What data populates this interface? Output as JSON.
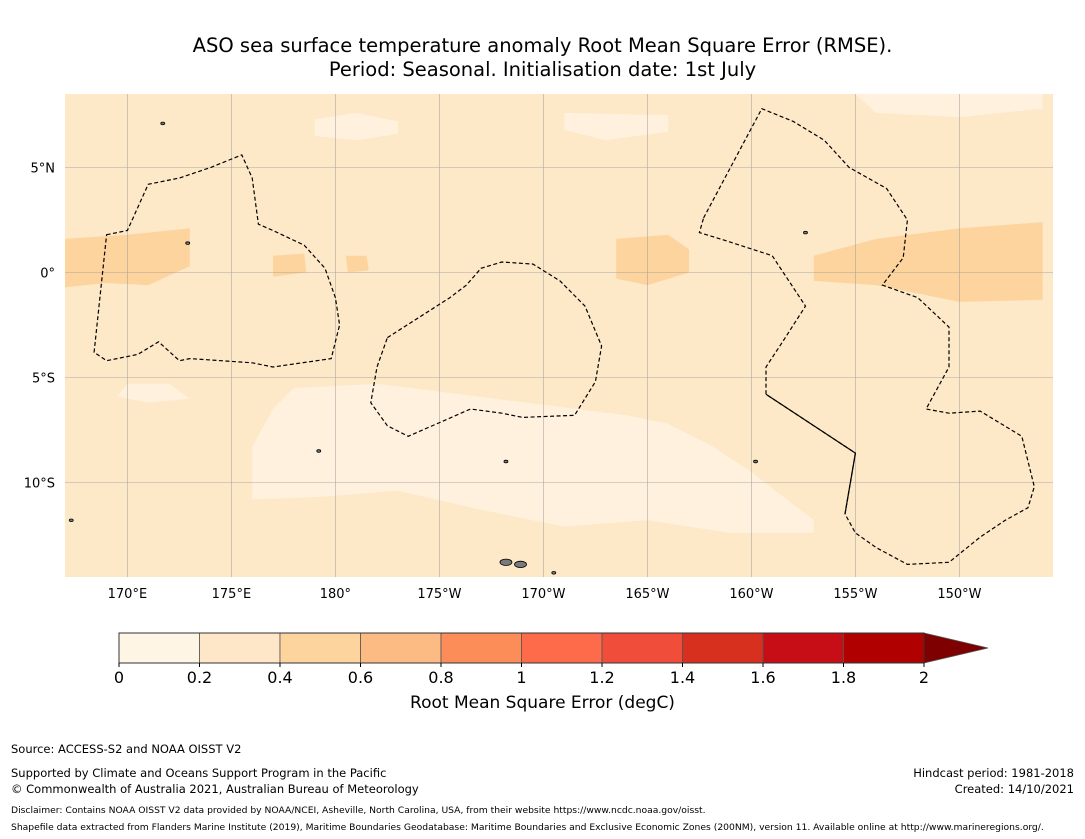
{
  "title": {
    "line1": "ASO sea surface temperature anomaly Root Mean Square Error (RMSE).",
    "line2": "Period: Seasonal. Initialisation date: 1st July"
  },
  "map": {
    "lat_range": [
      -14.5,
      8.5
    ],
    "lon_range": [
      167,
      214.5
    ],
    "lat_ticks": [
      {
        "value": 5,
        "label": "5°N"
      },
      {
        "value": 0,
        "label": "0°"
      },
      {
        "value": -5,
        "label": "5°S"
      },
      {
        "value": -10,
        "label": "10°S"
      }
    ],
    "lon_ticks": [
      {
        "value": 170,
        "label": "170°E"
      },
      {
        "value": 175,
        "label": "175°E"
      },
      {
        "value": 180,
        "label": "180°"
      },
      {
        "value": 185,
        "label": "175°W"
      },
      {
        "value": 190,
        "label": "170°W"
      },
      {
        "value": 195,
        "label": "165°W"
      },
      {
        "value": 200,
        "label": "160°W"
      },
      {
        "value": 205,
        "label": "155°W"
      },
      {
        "value": 210,
        "label": "150°W"
      }
    ],
    "background_color": "#fde8c8",
    "regions": [
      {
        "level": "0-0.2",
        "color": "#fff1de",
        "polygon": [
          [
            178,
            -5.5
          ],
          [
            182,
            -5.3
          ],
          [
            186,
            -5.8
          ],
          [
            190,
            -6.3
          ],
          [
            194,
            -6.8
          ],
          [
            196,
            -7.2
          ],
          [
            198,
            -8.2
          ],
          [
            200,
            -9.5
          ],
          [
            203,
            -11.8
          ],
          [
            203,
            -12.4
          ],
          [
            199,
            -12.4
          ],
          [
            195,
            -11.8
          ],
          [
            191,
            -12.1
          ],
          [
            187,
            -11.3
          ],
          [
            183,
            -10.4
          ],
          [
            179,
            -10.7
          ],
          [
            176,
            -10.8
          ],
          [
            176,
            -8.3
          ],
          [
            177,
            -6.5
          ]
        ]
      },
      {
        "level": "0-0.2",
        "color": "#fff1de",
        "polygon": [
          [
            170,
            -5.3
          ],
          [
            172,
            -5.3
          ],
          [
            173,
            -6.0
          ],
          [
            171,
            -6.2
          ],
          [
            169.5,
            -5.9
          ]
        ]
      },
      {
        "level": "0-0.2",
        "color": "#fff1de",
        "polygon": [
          [
            179,
            7.3
          ],
          [
            181,
            7.6
          ],
          [
            183,
            7.2
          ],
          [
            183,
            6.6
          ],
          [
            181,
            6.3
          ],
          [
            179,
            6.5
          ]
        ]
      },
      {
        "level": "0-0.2",
        "color": "#fff1de",
        "polygon": [
          [
            191,
            7.6
          ],
          [
            196,
            7.5
          ],
          [
            196,
            6.7
          ],
          [
            193,
            6.3
          ],
          [
            191,
            6.8
          ]
        ]
      },
      {
        "level": "0-0.2",
        "color": "#fff1de",
        "polygon": [
          [
            205,
            8.5
          ],
          [
            214,
            8.5
          ],
          [
            214,
            7.8
          ],
          [
            210,
            7.4
          ],
          [
            206,
            7.6
          ]
        ]
      },
      {
        "level": "0.4-0.6",
        "color": "#fdd49e",
        "polygon": [
          [
            167,
            1.6
          ],
          [
            170,
            1.8
          ],
          [
            173,
            2.1
          ],
          [
            173,
            0.3
          ],
          [
            171,
            -0.6
          ],
          [
            169,
            -0.5
          ],
          [
            167,
            -0.7
          ]
        ]
      },
      {
        "level": "0.4-0.6",
        "color": "#fdd49e",
        "polygon": [
          [
            193.5,
            1.6
          ],
          [
            196,
            1.8
          ],
          [
            197,
            1.1
          ],
          [
            197,
            0
          ],
          [
            195,
            -0.6
          ],
          [
            193.5,
            -0.3
          ]
        ]
      },
      {
        "level": "0.4-0.6",
        "color": "#fdd49e",
        "polygon": [
          [
            203,
            0.8
          ],
          [
            206,
            1.6
          ],
          [
            210,
            2.1
          ],
          [
            214,
            2.4
          ],
          [
            214,
            -1.3
          ],
          [
            210,
            -1.4
          ],
          [
            206,
            -0.6
          ],
          [
            203,
            -0.4
          ]
        ]
      },
      {
        "level": "0.4-0.6",
        "color": "#fdd49e",
        "polygon": [
          [
            177,
            0.8
          ],
          [
            178.5,
            0.9
          ],
          [
            178.6,
            0
          ],
          [
            177,
            -0.2
          ]
        ]
      },
      {
        "level": "0.4-0.6",
        "color": "#fdd49e",
        "polygon": [
          [
            180.5,
            0.8
          ],
          [
            181.5,
            0.8
          ],
          [
            181.6,
            0.1
          ],
          [
            180.6,
            0.0
          ]
        ]
      }
    ],
    "eez_boundaries": [
      {
        "name": "eez-1",
        "points": [
          [
            169,
            1.8
          ],
          [
            170,
            2.0
          ],
          [
            171,
            4.2
          ],
          [
            172.5,
            4.5
          ],
          [
            174,
            5.0
          ],
          [
            175.5,
            5.6
          ],
          [
            176,
            4.5
          ],
          [
            176.3,
            2.3
          ],
          [
            177,
            2.0
          ],
          [
            178.5,
            1.3
          ],
          [
            179.5,
            0.2
          ],
          [
            180,
            -1.2
          ],
          [
            180.2,
            -2.5
          ],
          [
            179.8,
            -4.1
          ],
          [
            177,
            -4.5
          ],
          [
            176,
            -4.3
          ],
          [
            173,
            -4.1
          ],
          [
            172.5,
            -4.2
          ],
          [
            171.5,
            -3.3
          ],
          [
            170.5,
            -3.9
          ],
          [
            169,
            -4.2
          ],
          [
            168.4,
            -3.8
          ]
        ],
        "closed": true
      },
      {
        "name": "eez-2",
        "points": [
          [
            182.5,
            -3.1
          ],
          [
            185.5,
            -1.2
          ],
          [
            186.3,
            -0.6
          ],
          [
            187,
            0.2
          ],
          [
            188,
            0.5
          ],
          [
            189.5,
            0.4
          ],
          [
            190.8,
            -0.4
          ],
          [
            192,
            -1.6
          ],
          [
            192.8,
            -3.5
          ],
          [
            192.5,
            -5.2
          ],
          [
            191.5,
            -6.8
          ],
          [
            189,
            -6.9
          ],
          [
            188,
            -6.7
          ],
          [
            186.5,
            -6.5
          ],
          [
            183.5,
            -7.8
          ],
          [
            182.5,
            -7.3
          ],
          [
            181.7,
            -6.2
          ],
          [
            182,
            -4.5
          ]
        ],
        "closed": true
      },
      {
        "name": "eez-3",
        "points": [
          [
            197.7,
            2.6
          ],
          [
            200.5,
            7.8
          ],
          [
            202,
            7.2
          ],
          [
            203.5,
            6.3
          ],
          [
            204.7,
            5.0
          ],
          [
            206.5,
            4.0
          ],
          [
            207.5,
            2.5
          ],
          [
            207.3,
            0.7
          ],
          [
            206.3,
            -0.6
          ],
          [
            208,
            -1.2
          ],
          [
            209.5,
            -2.6
          ],
          [
            209.5,
            -4.5
          ],
          [
            208.4,
            -6.5
          ],
          [
            209.5,
            -6.7
          ],
          [
            211,
            -6.6
          ],
          [
            213,
            -7.8
          ],
          [
            213.6,
            -10.2
          ],
          [
            213.3,
            -11.2
          ],
          [
            212.2,
            -11.8
          ],
          [
            211,
            -12.6
          ],
          [
            209.5,
            -13.8
          ],
          [
            207.5,
            -13.9
          ],
          [
            206,
            -13.1
          ],
          [
            205,
            -12.4
          ],
          [
            204.5,
            -11.5
          ]
        ],
        "closed": false
      },
      {
        "name": "eez-3b",
        "points": [
          [
            204.5,
            -11.5
          ],
          [
            205,
            -8.6
          ],
          [
            200.7,
            -5.8
          ],
          [
            200.7,
            -4.5
          ],
          [
            201.5,
            -3.3
          ],
          [
            202.6,
            -1.6
          ],
          [
            201,
            0.8
          ],
          [
            198.5,
            1.6
          ],
          [
            197.5,
            1.9
          ],
          [
            197.7,
            2.6
          ]
        ],
        "closed": false
      }
    ],
    "boundary_solid": {
      "name": "solid-boundary",
      "points": [
        [
          200.7,
          -5.8
        ],
        [
          205,
          -8.6
        ],
        [
          204.5,
          -11.5
        ]
      ]
    },
    "islands": [
      {
        "name": "island-west",
        "lon": 167.3,
        "lat": -11.8
      },
      {
        "name": "island-upolu",
        "lon": 188.2,
        "lat": -13.8
      },
      {
        "name": "island-savaii",
        "lon": 188.9,
        "lat": -13.9
      },
      {
        "name": "island-tutuila",
        "lon": 190.5,
        "lat": -14.3
      },
      {
        "name": "island-tarawa",
        "lon": 172.9,
        "lat": 1.4
      },
      {
        "name": "island-kiritimati",
        "lon": 202.6,
        "lat": 1.9
      },
      {
        "name": "island-funafuti",
        "lon": 179.2,
        "lat": -8.5
      },
      {
        "name": "island-tokelau",
        "lon": 188.2,
        "lat": -9.0
      },
      {
        "name": "island-marshall",
        "lon": 171.7,
        "lat": 7.1
      },
      {
        "name": "island-rarotonga",
        "lon": 200.2,
        "lat": -9.0
      }
    ]
  },
  "colorbar": {
    "label": "Root Mean Square Error (degC)",
    "ticks": [
      "0",
      "0.2",
      "0.4",
      "0.6",
      "0.8",
      "1",
      "1.2",
      "1.4",
      "1.6",
      "1.8",
      "2"
    ],
    "colors": [
      "#fff5e4",
      "#fee6c8",
      "#fdd49e",
      "#fdbb84",
      "#fc8d59",
      "#fd6b4b",
      "#f04d3a",
      "#d7301f",
      "#c70e16",
      "#b00000"
    ],
    "extend_color": "#7f0000"
  },
  "footer": {
    "source": "Source: ACCESS-S2 and NOAA OISST V2",
    "supported": "Supported by Climate and Oceans Support Program in the Pacific",
    "copyright": "© Commonwealth of Australia 2021, Australian Bureau of Meteorology",
    "hindcast": "Hindcast period: 1981-2018",
    "created": "Created: 14/10/2021",
    "disclaimer": "Disclaimer: Contains NOAA OISST V2 data provided by NOAA/NCEI, Asheville, North Carolina, USA, from their website https://www.ncdc.noaa.gov/oisst.",
    "shapefile": "Shapefile data extracted from Flanders Marine Institute (2019), Maritime Boundaries Geodatabase: Maritime Boundaries and Exclusive Economic Zones (200NM), version 11. Available online at http://www.marineregions.org/."
  }
}
